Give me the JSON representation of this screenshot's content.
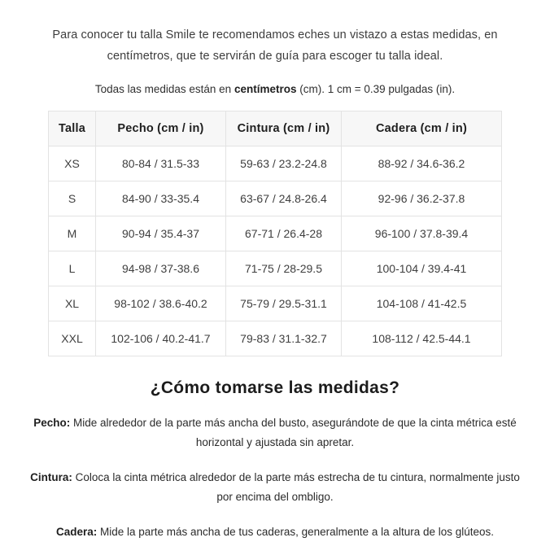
{
  "intro": {
    "text": "Para conocer tu talla Smile te recomendamos eches un vistazo a estas medidas, en centímetros, que te servirán de guía para escoger tu talla ideal."
  },
  "units_note": {
    "prefix": "Todas las medidas están en ",
    "bold": "centímetros",
    "suffix": " (cm). 1 cm = 0.39 pulgadas (in)."
  },
  "size_table": {
    "headers": [
      "Talla",
      "Pecho (cm / in)",
      "Cintura (cm / in)",
      "Cadera (cm / in)"
    ],
    "rows": [
      [
        "XS",
        "80-84 / 31.5-33",
        "59-63 / 23.2-24.8",
        "88-92 / 34.6-36.2"
      ],
      [
        "S",
        "84-90 / 33-35.4",
        "63-67 / 24.8-26.4",
        "92-96 / 36.2-37.8"
      ],
      [
        "M",
        "90-94 / 35.4-37",
        "67-71 / 26.4-28",
        "96-100 / 37.8-39.4"
      ],
      [
        "L",
        "94-98 / 37-38.6",
        "71-75 / 28-29.5",
        "100-104 / 39.4-41"
      ],
      [
        "XL",
        "98-102 / 38.6-40.2",
        "75-79 / 29.5-31.1",
        "104-108 / 41-42.5"
      ],
      [
        "XXL",
        "102-106 / 40.2-41.7",
        "79-83 / 31.1-32.7",
        "108-112 / 42.5-44.1"
      ]
    ]
  },
  "how_to": {
    "title": "¿Cómo tomarse las medidas?",
    "items": [
      {
        "label": "Pecho:",
        "text": " Mide alrededor de la parte más ancha del busto, asegurándote de que la cinta métrica esté horizontal y ajustada sin apretar."
      },
      {
        "label": "Cintura:",
        "text": " Coloca la cinta métrica alrededor de la parte más estrecha de tu cintura, normalmente justo por encima del ombligo."
      },
      {
        "label": "Cadera:",
        "text": " Mide la parte más ancha de tus caderas, generalmente a la altura de los glúteos."
      }
    ]
  },
  "colors": {
    "table_header_bg": "#f7f7f7",
    "table_border": "#e3e3e3",
    "body_text": "#3d3d3d",
    "heading_text": "#1c1c1c"
  }
}
